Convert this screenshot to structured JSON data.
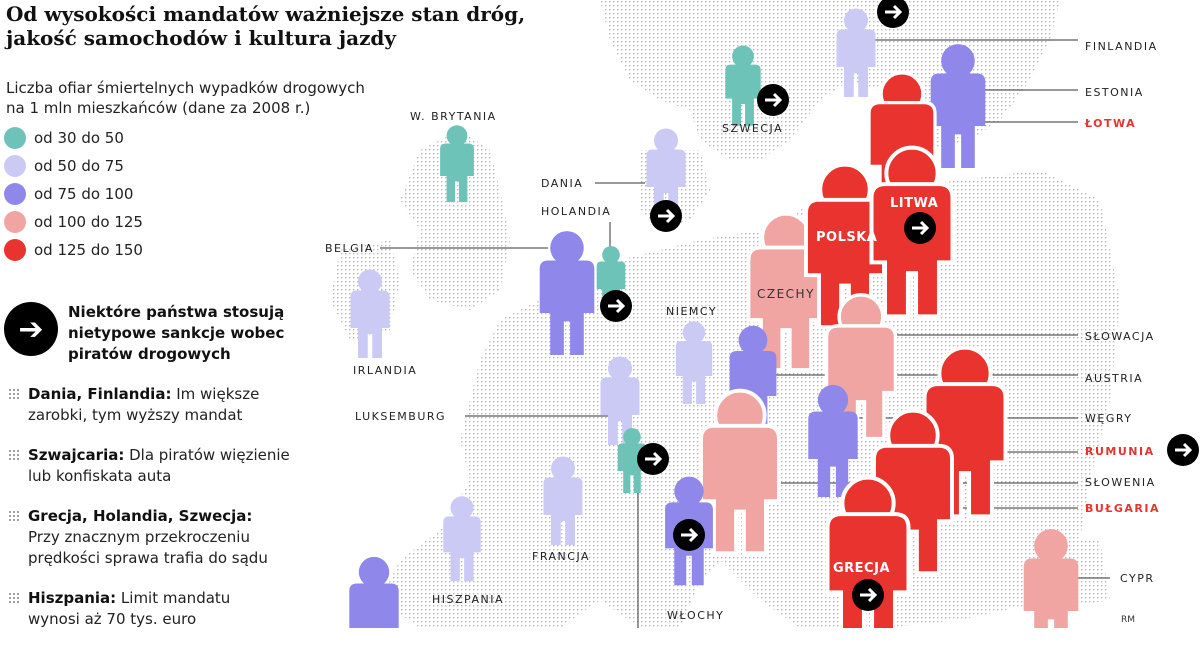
{
  "title_line1": "Od wysokości mandatów ważniejsze stan dróg,",
  "title_line2": "jakość samochodów i kultura jazdy",
  "subtitle_line1": "Liczba ofiar śmiertelnych wypadków drogowych",
  "subtitle_line2": "na 1 mln mieszkańców (dane za 2008 r.)",
  "legend": [
    {
      "label": "od 30 do 50",
      "color": "#6ec3b8"
    },
    {
      "label": "od 50 do 75",
      "color": "#cbcaf5"
    },
    {
      "label": "od 75 do 100",
      "color": "#8f88ea"
    },
    {
      "label": "od 100 do 125",
      "color": "#f0a5a3"
    },
    {
      "label": "od 125 do 150",
      "color": "#e8332e"
    }
  ],
  "sanctions": {
    "icon": "arrow-right-icon",
    "line1": "Niektóre państwa stosują",
    "line2": "nietypowe sankcje wobec",
    "line3": "piratów drogowych"
  },
  "notes": [
    {
      "bold": "Dania, Finlandia:",
      "line1": " Im większe",
      "line2": "zarobki, tym wyższy mandat"
    },
    {
      "bold": "Szwajcaria:",
      "line1": " Dla piratów więzienie",
      "line2": "lub konfiskata auta"
    },
    {
      "bold": "Grecja, Holandia, Szwecja:",
      "line1": "",
      "line2": "Przy znacznym przekroczeniu",
      "line3": "prędkości sprawa trafia do sądu"
    },
    {
      "bold": "Hiszpania:",
      "line1": " Limit mandatu",
      "line2": "wynosi aż 70 tys. euro"
    }
  ],
  "countries": {
    "finlandia": "FINLANDIA",
    "estonia": "ESTONIA",
    "lotwa": "ŁOTWA",
    "szwecja": "SZWECJA",
    "w_brytania": "W. BRYTANIA",
    "dania": "DANIA",
    "holandia": "HOLANDIA",
    "belgia": "BELGIA",
    "irlandia": "IRLANDIA",
    "niemcy": "NIEMCY",
    "czechy": "CZECHY",
    "polska": "POLSKA",
    "litwa": "LITWA",
    "slowacja": "SŁOWACJA",
    "austria": "AUSTRIA",
    "wegry": "WĘGRY",
    "rumunia": "RUMUNIA",
    "slowenia": "SŁOWENIA",
    "bulgaria": "BUŁGARIA",
    "luksemburg": "LUKSEMBURG",
    "francja": "FRANCJA",
    "hiszpania": "HISZPANIA",
    "wlochy": "WŁOCHY",
    "grecja": "GRECJA",
    "cypr": "CYPR"
  },
  "credit": "RM"
}
